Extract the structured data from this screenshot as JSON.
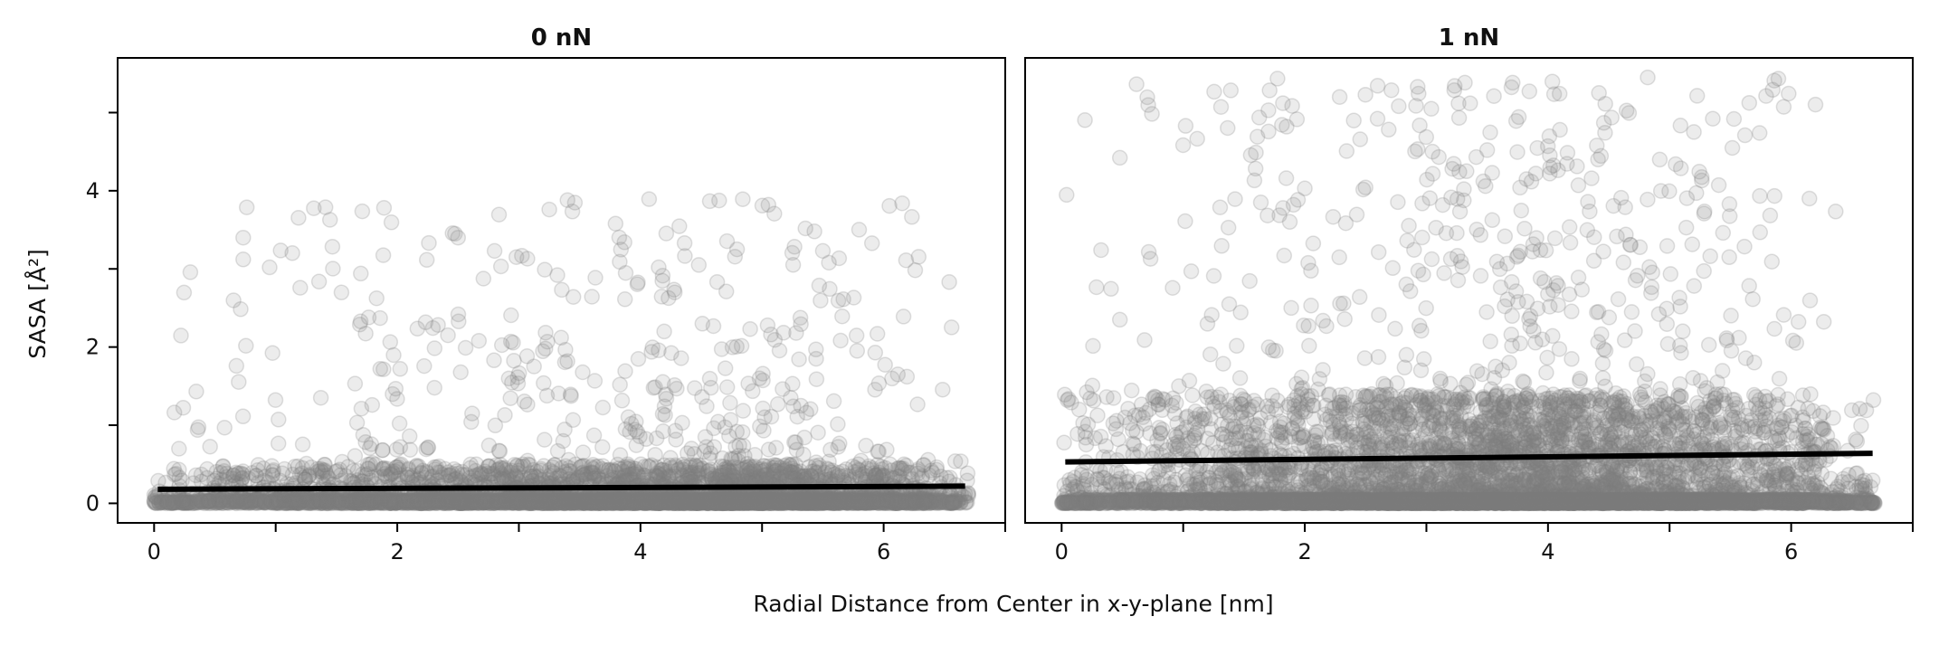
{
  "figure": {
    "ylabel": "SASA [Å²]",
    "xlabel": "Radial Distance from Center in x-y-plane [nm]",
    "point_color": "#7f7f7f",
    "line_color": "#000000"
  },
  "chart_data": [
    {
      "type": "scatter",
      "title": "0 nN",
      "xlim": [
        -0.3,
        7.0
      ],
      "ylim": [
        -0.25,
        5.7
      ],
      "x_ticks": [
        0,
        2,
        4,
        6
      ],
      "x_minor_ticks": [
        1,
        3,
        5
      ],
      "y_ticks": [
        0,
        2,
        4
      ],
      "y_minor_ticks": [
        1,
        3,
        5
      ],
      "grid": false,
      "point_opacity": 0.15,
      "distribution": {
        "x_range": [
          0.0,
          6.7
        ],
        "x_peak": 4.6,
        "dense_band_max_y": 0.5,
        "sparse_max_y": 3.9,
        "approx_points": 6000
      },
      "outliers": [
        [
          3.4,
          3.88
        ],
        [
          0.95,
          3.02
        ],
        [
          2.5,
          3.4
        ],
        [
          2.8,
          3.23
        ],
        [
          5.5,
          3.23
        ],
        [
          1.7,
          2.94
        ],
        [
          5.55,
          3.08
        ],
        [
          4.15,
          3.02
        ]
      ],
      "fit_line": {
        "x": [
          0.03,
          6.67
        ],
        "y": [
          0.18,
          0.22
        ]
      }
    },
    {
      "type": "scatter",
      "title": "1 nN",
      "xlim": [
        -0.3,
        7.0
      ],
      "ylim": [
        -0.25,
        5.7
      ],
      "x_ticks": [
        0,
        2,
        4,
        6
      ],
      "x_minor_ticks": [
        1,
        3,
        5
      ],
      "y_ticks": [
        0,
        2,
        4
      ],
      "y_minor_ticks": [
        1,
        3,
        5
      ],
      "grid": false,
      "point_opacity": 0.15,
      "distribution": {
        "x_range": [
          0.0,
          6.7
        ],
        "x_peak": 4.0,
        "dense_band_max_y": 1.4,
        "sparse_max_y": 5.45,
        "approx_points": 9000
      },
      "outliers": [
        [
          4.82,
          5.45
        ],
        [
          1.82,
          5.12
        ],
        [
          1.85,
          4.82
        ],
        [
          1.02,
          4.83
        ],
        [
          5.62,
          4.71
        ],
        [
          3.05,
          4.5
        ],
        [
          3.5,
          4.52
        ],
        [
          5.05,
          4.34
        ],
        [
          3.9,
          4.22
        ],
        [
          6.15,
          3.9
        ],
        [
          2.0,
          4.03
        ],
        [
          4.25,
          4.07
        ]
      ],
      "fit_line": {
        "x": [
          0.03,
          6.67
        ],
        "y": [
          0.53,
          0.64
        ]
      }
    }
  ]
}
